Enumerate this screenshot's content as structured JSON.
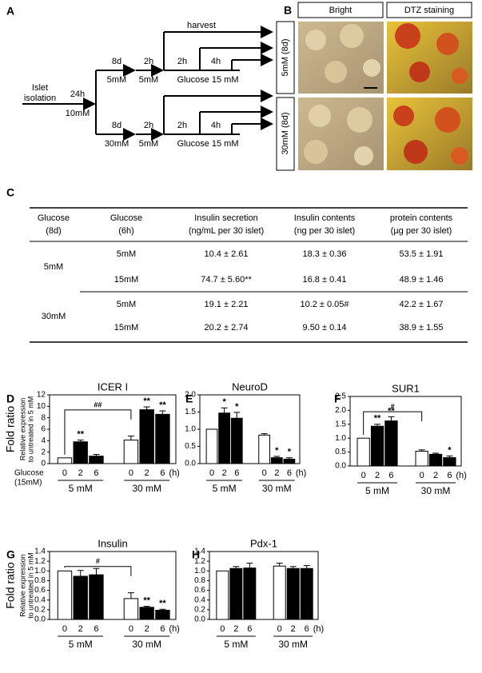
{
  "panel_labels": [
    "A",
    "B",
    "C"
  ],
  "diagram": {
    "labels": [
      "Islet",
      "isolation",
      "24h",
      "10mM",
      "8d",
      "5mM",
      "2h",
      "5mM",
      "2h",
      "4h",
      "harvest",
      "Glucose 15 mM",
      "8d",
      "30mM",
      "2h",
      "5mM",
      "2h",
      "4h",
      "Glucose 15 mM"
    ]
  },
  "images": {
    "columns": [
      "Bright",
      "DTZ staining"
    ],
    "rows": [
      "5mM (8d)",
      "30mM (8d)"
    ]
  },
  "table": {
    "header": [
      [
        "Glucose",
        "(8d)"
      ],
      [
        "Glucose",
        "(6h)"
      ],
      [
        "Insulin secretion",
        "(ng/mL per 30 islet)"
      ],
      [
        "Insulin contents",
        "(ng per 30 islet)"
      ],
      [
        "protein contents",
        "(µg per 30 islet)"
      ]
    ],
    "groups": [
      "5mM",
      "30mM"
    ],
    "rows": [
      [
        "5mM",
        "10.4 ± 2.61",
        "18.3 ± 0.36",
        "53.5 ± 1.91"
      ],
      [
        "15mM",
        "74.7 ± 5.60**",
        "16.8 ± 0.41",
        "48.9 ± 1.46"
      ],
      [
        "5mM",
        "19.1 ± 2.21",
        "10.2 ± 0.05#",
        "42.2 ± 1.67"
      ],
      [
        "15mM",
        "20.2 ± 2.74",
        "9.50 ± 0.14",
        "38.9 ± 1.55"
      ]
    ]
  },
  "chart_data": [
    {
      "type": "bar",
      "panel": "D",
      "title": "ICER I",
      "y_label": "Fold ratio",
      "y_sublabel": [
        "Relative expression",
        "to untreated in 5 mM"
      ],
      "x_label": [
        "Glucose",
        "(15mM)"
      ],
      "categories": [
        "0",
        "2",
        "6",
        "0",
        "2",
        "6"
      ],
      "time_unit": "(h)",
      "groups": [
        "5 mM",
        "30 mM"
      ],
      "values": [
        1.0,
        3.8,
        1.3,
        4.1,
        9.4,
        8.6
      ],
      "errors": [
        null,
        0.3,
        0.3,
        0.7,
        0.5,
        0.6
      ],
      "colors": [
        "#ffffff",
        "#000000",
        "#000000",
        "#ffffff",
        "#000000",
        "#000000"
      ],
      "sig_labels": [
        null,
        "**",
        null,
        null,
        "**",
        "**"
      ],
      "bracket_label": "##",
      "ylim": [
        0,
        12
      ],
      "yticks": [
        0,
        2,
        4,
        6,
        8,
        10,
        12
      ]
    },
    {
      "type": "bar",
      "panel": "E",
      "title": "NeuroD",
      "categories": [
        "0",
        "2",
        "6",
        "0",
        "2",
        "6"
      ],
      "time_unit": "(h)",
      "groups": [
        "5 mM",
        "30 mM"
      ],
      "values": [
        1.0,
        1.47,
        1.32,
        0.83,
        0.17,
        0.13
      ],
      "errors": [
        null,
        0.15,
        0.17,
        0.04,
        0.04,
        0.04
      ],
      "colors": [
        "#ffffff",
        "#000000",
        "#000000",
        "#ffffff",
        "#000000",
        "#000000"
      ],
      "sig_labels": [
        null,
        "*",
        "*",
        null,
        "*",
        "*"
      ],
      "ylim": [
        0,
        2.0
      ],
      "yticks": [
        {
          "value": 0,
          "label": "0.0"
        },
        0.5,
        {
          "value": 1.0,
          "label": "1.0"
        },
        1.5,
        {
          "value": 2.0,
          "label": "2.0"
        }
      ]
    },
    {
      "type": "bar",
      "panel": "F",
      "title": "SUR1",
      "categories": [
        "0",
        "2",
        "6",
        "0",
        "2",
        "6"
      ],
      "time_unit": "(h)",
      "groups": [
        "5 mM",
        "30 mM"
      ],
      "values": [
        1.0,
        1.43,
        1.62,
        0.53,
        0.42,
        0.3
      ],
      "errors": [
        null,
        0.07,
        0.15,
        0.05,
        0.04,
        0.06
      ],
      "colors": [
        "#ffffff",
        "#000000",
        "#000000",
        "#ffffff",
        "#000000",
        "#000000"
      ],
      "sig_labels": [
        null,
        "**",
        "**",
        null,
        null,
        "*"
      ],
      "bracket_label": "#",
      "ylim": [
        0,
        2.5
      ],
      "yticks": [
        {
          "value": 0,
          "label": "0.0"
        },
        0.5,
        {
          "value": 1.0,
          "label": "1.0"
        },
        1.5,
        {
          "value": 2.0,
          "label": "2.0"
        },
        2.5
      ]
    },
    {
      "type": "bar",
      "panel": "G",
      "title": "Insulin",
      "y_label": "Fold ratio",
      "y_sublabel": [
        "Relative expression",
        "to untreated in 5 mM"
      ],
      "categories": [
        "0",
        "2",
        "6",
        "0",
        "2",
        "6"
      ],
      "time_unit": "(h)",
      "groups": [
        "5 mM",
        "30 mM"
      ],
      "values": [
        1.0,
        0.89,
        0.92,
        0.43,
        0.25,
        0.19
      ],
      "errors": [
        null,
        0.12,
        0.13,
        0.12,
        0.02,
        0.02
      ],
      "colors": [
        "#ffffff",
        "#000000",
        "#000000",
        "#ffffff",
        "#000000",
        "#000000"
      ],
      "sig_labels": [
        null,
        null,
        null,
        null,
        "**",
        "**"
      ],
      "bracket_label": "#",
      "ylim": [
        0,
        1.4
      ],
      "yticks": [
        {
          "value": 0,
          "label": "0.0"
        },
        0.2,
        0.4,
        0.6,
        0.8,
        {
          "value": 1.0,
          "label": "1.0"
        },
        1.2,
        1.4
      ]
    },
    {
      "type": "bar",
      "panel": "H",
      "title": "Pdx-1",
      "categories": [
        "0",
        "2",
        "6",
        "0",
        "2",
        "6"
      ],
      "time_unit": "(h)",
      "groups": [
        "5 mM",
        "30 mM"
      ],
      "values": [
        1.0,
        1.05,
        1.06,
        1.1,
        1.05,
        1.05
      ],
      "errors": [
        null,
        0.04,
        0.1,
        0.06,
        0.04,
        0.06
      ],
      "colors": [
        "#ffffff",
        "#000000",
        "#000000",
        "#ffffff",
        "#000000",
        "#000000"
      ],
      "ylim": [
        0,
        1.4
      ],
      "yticks": [
        {
          "value": 0,
          "label": "0.0"
        },
        0.2,
        0.4,
        0.6,
        0.8,
        {
          "value": 1.0,
          "label": "1.0"
        },
        1.2,
        1.4
      ]
    }
  ]
}
